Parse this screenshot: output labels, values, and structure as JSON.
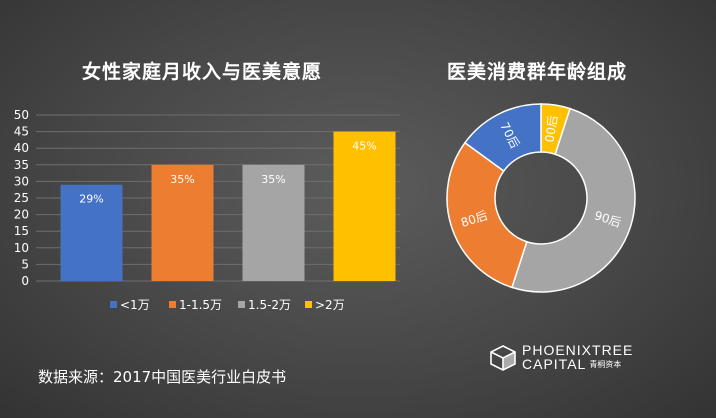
{
  "chart_data": [
    {
      "type": "bar",
      "title": "女性家庭月收入与医美意愿",
      "categories": [
        "<1万",
        "1-1.5万",
        "1.5-2万",
        ">2万"
      ],
      "values": [
        29,
        35,
        35,
        45
      ],
      "value_labels": [
        "29%",
        "35%",
        "35%",
        "45%"
      ],
      "ylim": [
        0,
        50
      ],
      "yticks": [
        0,
        5,
        10,
        15,
        20,
        25,
        30,
        35,
        40,
        45,
        50
      ],
      "colors": [
        "#4472C4",
        "#ED7D31",
        "#A5A5A5",
        "#FFC000"
      ],
      "legend": [
        "<1万",
        "1-1.5万",
        "1.5-2万",
        ">2万"
      ],
      "legend_position": "bottom",
      "grid": true
    },
    {
      "type": "pie",
      "variant": "donut",
      "title": "医美消费群年龄组成",
      "labels": [
        "00后",
        "90后",
        "80后",
        "70后"
      ],
      "values": [
        5,
        50,
        30,
        15
      ],
      "colors": [
        "#FFC000",
        "#A5A5A5",
        "#ED7D31",
        "#4472C4"
      ]
    }
  ],
  "source_text": "数据来源：2017中国医美行业白皮书",
  "logo": {
    "line1": "PHOENIXTREE",
    "line2": "CAPITAL",
    "line2_cn": "青桐资本",
    "icon": "cube-logo-icon"
  }
}
